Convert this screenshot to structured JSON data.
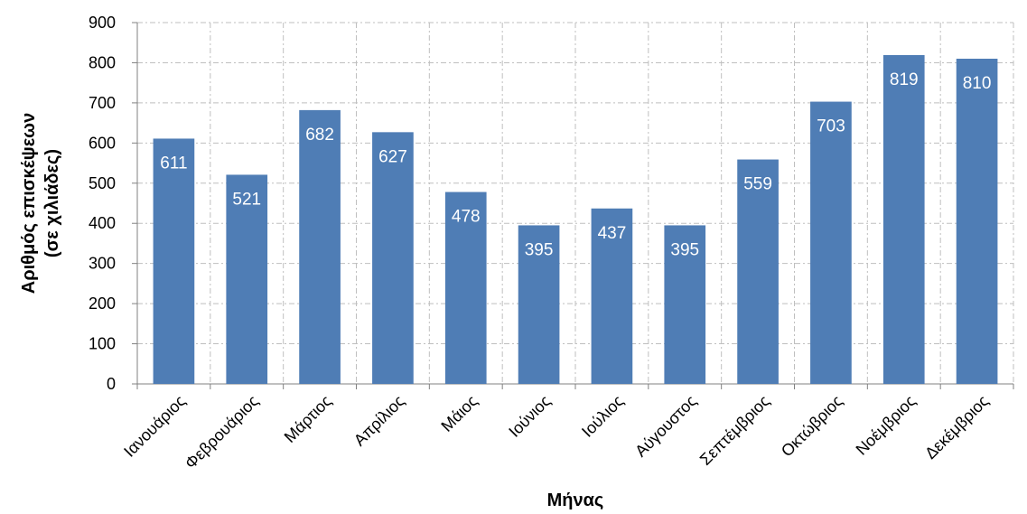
{
  "chart_data": {
    "type": "bar",
    "categories": [
      "Ιανουάριος",
      "Φεβρουάριος",
      "Μάρτιος",
      "Απρίλιος",
      "Μάιος",
      "Ιούνιος",
      "Ιούλιος",
      "Αύγουστος",
      "Σεπτέμβριος",
      "Οκτώβριος",
      "Νοέμβριος",
      "Δεκέμβριος"
    ],
    "values": [
      611,
      521,
      682,
      627,
      478,
      395,
      437,
      395,
      559,
      703,
      819,
      810
    ],
    "title": "",
    "xlabel": "Μήνας",
    "ylabel_line1": "Αριθμός επισκέψεων",
    "ylabel_line2": "(σε χιλιάδες)",
    "ylim": [
      0,
      900
    ],
    "yticks": [
      0,
      100,
      200,
      300,
      400,
      500,
      600,
      700,
      800,
      900
    ],
    "grid": true,
    "legend": "none",
    "bar_color": "#4F7DB5",
    "grid_color": "#BFBFBF",
    "data_label_color": "#FFFFFF"
  }
}
